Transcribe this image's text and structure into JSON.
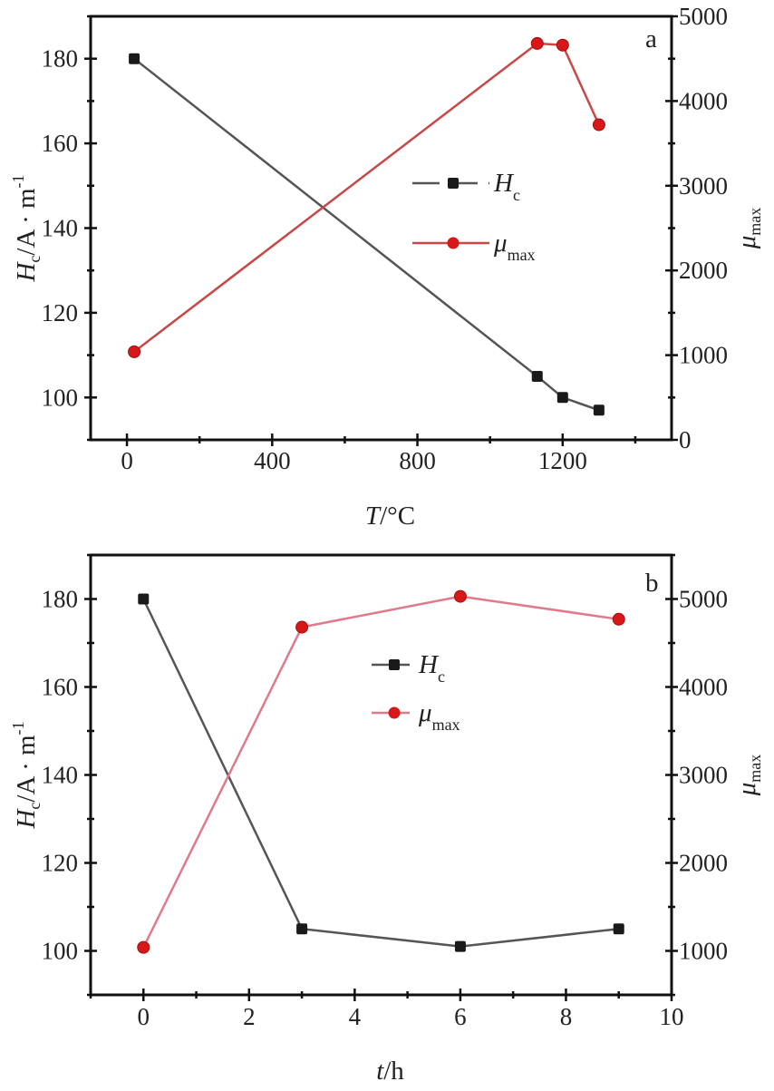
{
  "chart_data": [
    {
      "panel": "a",
      "type": "line",
      "xlabel": {
        "main": "T",
        "rest": "/°C"
      },
      "ylabel_left": {
        "main": "H",
        "sub": "c",
        "rest": "/A · m",
        "sup": "-1"
      },
      "ylabel_right": {
        "main": "μ",
        "sub": "max"
      },
      "xlim": [
        -100,
        1500
      ],
      "ylim_left": [
        90,
        190
      ],
      "ylim_right": [
        0,
        5000
      ],
      "xticks": [
        0,
        400,
        800,
        1200
      ],
      "xminor": 200,
      "yticks_left": [
        100,
        120,
        140,
        160,
        180
      ],
      "yminor_left": 10,
      "yticks_right": [
        0,
        1000,
        2000,
        3000,
        4000,
        5000
      ],
      "yminor_right": 500,
      "legend_position": "center-right",
      "series": [
        {
          "name": "Hc",
          "label_main": "H",
          "label_sub": "c",
          "axis": "left",
          "color": "#555555",
          "marker": "square",
          "marker_color": "#1a1a1a",
          "dashed_legend": true,
          "x": [
            20,
            1130,
            1200,
            1300
          ],
          "y": [
            180,
            105,
            100,
            97
          ]
        },
        {
          "name": "μmax",
          "label_main": "μ",
          "label_sub": "max",
          "axis": "right",
          "color": "#c84848",
          "marker": "circle",
          "marker_color": "#d81818",
          "x": [
            20,
            1130,
            1200,
            1300
          ],
          "y": [
            1040,
            4680,
            4660,
            3720
          ]
        }
      ]
    },
    {
      "panel": "b",
      "type": "line",
      "xlabel": {
        "main": "t",
        "rest": "/h"
      },
      "ylabel_left": {
        "main": "H",
        "sub": "c",
        "rest": "/A · m",
        "sup": "-1"
      },
      "ylabel_right": {
        "main": "μ",
        "sub": "max"
      },
      "xlim": [
        -1,
        10
      ],
      "ylim_left": [
        90,
        190
      ],
      "ylim_right": [
        500,
        5500
      ],
      "xticks": [
        0,
        2,
        4,
        6,
        8,
        10
      ],
      "xminor": 1,
      "yticks_left": [
        100,
        120,
        140,
        160,
        180
      ],
      "yminor_left": 10,
      "yticks_right": [
        1000,
        2000,
        3000,
        4000,
        5000
      ],
      "yminor_right": 500,
      "legend_position": "top-center",
      "series": [
        {
          "name": "Hc",
          "label_main": "H",
          "label_sub": "c",
          "axis": "left",
          "color": "#555555",
          "marker": "square",
          "marker_color": "#1a1a1a",
          "x": [
            0,
            3,
            6,
            9
          ],
          "y": [
            180,
            105,
            101,
            105
          ]
        },
        {
          "name": "μmax",
          "label_main": "μ",
          "label_sub": "max",
          "axis": "right",
          "color": "#e07a8a",
          "marker": "circle",
          "marker_color": "#d81818",
          "x": [
            0,
            3,
            6,
            9
          ],
          "y": [
            1040,
            4680,
            5030,
            4770
          ]
        }
      ]
    }
  ]
}
